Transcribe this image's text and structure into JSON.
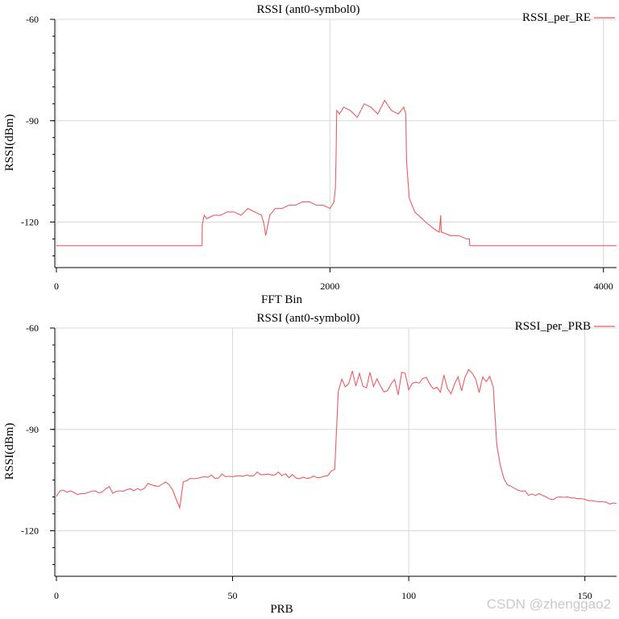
{
  "chart_data": [
    {
      "type": "line",
      "title": "RSSI (ant0-symbol0)",
      "xlabel": "FFT Bin",
      "ylabel": "RSSI(dBm)",
      "xlim": [
        0,
        4096
      ],
      "ylim": [
        -133,
        -60
      ],
      "xticks": [
        0,
        2000,
        4000
      ],
      "yticks": [
        -60,
        -90,
        -120
      ],
      "grid": true,
      "legend": "top-right",
      "series": [
        {
          "name": "RSSI_per_RE",
          "color": "#ee5a62",
          "x": [
            0,
            1065,
            1066,
            1080,
            1100,
            1150,
            1200,
            1250,
            1300,
            1350,
            1400,
            1450,
            1500,
            1520,
            1530,
            1545,
            1560,
            1600,
            1650,
            1700,
            1750,
            1800,
            1850,
            1900,
            1950,
            2000,
            2030,
            2040,
            2045,
            2050,
            2070,
            2100,
            2150,
            2200,
            2250,
            2300,
            2350,
            2400,
            2450,
            2500,
            2540,
            2555,
            2560,
            2580,
            2620,
            2700,
            2760,
            2800,
            2810,
            2815,
            2820,
            2880,
            2940,
            3000,
            3020,
            3022,
            4096
          ],
          "y": [
            -127,
            -127,
            -121,
            -118,
            -119,
            -118,
            -118,
            -117,
            -117,
            -118,
            -116,
            -117,
            -118,
            -121,
            -124,
            -121,
            -118,
            -116,
            -116,
            -115,
            -115,
            -114,
            -114,
            -115,
            -115,
            -116,
            -114,
            -110,
            -100,
            -87,
            -88,
            -86,
            -87,
            -89,
            -85,
            -86,
            -88,
            -84,
            -87,
            -88,
            -86,
            -88,
            -102,
            -113,
            -117,
            -120,
            -122,
            -123,
            -118,
            -123,
            -123,
            -124,
            -124,
            -125,
            -125,
            -127,
            -127
          ]
        }
      ]
    },
    {
      "type": "line",
      "title": "RSSI (ant0-symbol0)",
      "xlabel": "PRB",
      "ylabel": "RSSI(dBm)",
      "xlim": [
        0,
        159
      ],
      "ylim": [
        -133,
        -60
      ],
      "xticks": [
        0,
        50,
        100,
        150
      ],
      "yticks": [
        -60,
        -90,
        -120
      ],
      "grid": true,
      "legend": "top-right",
      "series": [
        {
          "name": "RSSI_per_PRB",
          "color": "#ee5a62",
          "x": [
            0,
            1,
            2,
            3,
            4,
            5,
            6,
            7,
            8,
            9,
            10,
            11,
            12,
            13,
            14,
            15,
            16,
            17,
            18,
            19,
            20,
            21,
            22,
            23,
            24,
            25,
            26,
            27,
            28,
            29,
            30,
            31,
            32,
            33,
            34,
            35,
            36,
            37,
            38,
            39,
            40,
            41,
            42,
            43,
            44,
            45,
            46,
            47,
            48,
            49,
            50,
            51,
            52,
            53,
            54,
            55,
            56,
            57,
            58,
            59,
            60,
            61,
            62,
            63,
            64,
            65,
            66,
            67,
            68,
            69,
            70,
            71,
            72,
            73,
            74,
            75,
            76,
            77,
            78,
            79,
            80,
            81,
            82,
            83,
            84,
            85,
            86,
            87,
            88,
            89,
            90,
            91,
            92,
            93,
            94,
            95,
            96,
            97,
            98,
            99,
            100,
            101,
            102,
            103,
            104,
            105,
            106,
            107,
            108,
            109,
            110,
            111,
            112,
            113,
            114,
            115,
            116,
            117,
            118,
            119,
            120,
            121,
            122,
            123,
            124,
            125,
            126,
            127,
            128,
            129,
            130,
            131,
            132,
            133,
            134,
            135,
            136,
            137,
            138,
            139,
            140,
            141,
            142,
            143,
            144,
            145,
            146,
            147,
            148,
            149,
            150,
            151,
            152,
            153,
            154,
            155,
            156,
            157,
            158,
            159
          ],
          "y": [
            -109.8,
            -108.2,
            -108.0,
            -108.6,
            -108.2,
            -108.7,
            -109.3,
            -109.0,
            -109.0,
            -108.7,
            -108.3,
            -108.2,
            -108.8,
            -108.5,
            -107.6,
            -106.9,
            -108.9,
            -108.3,
            -108.2,
            -108.3,
            -107.8,
            -107.6,
            -108.2,
            -107.5,
            -108.0,
            -107.4,
            -106.0,
            -106.4,
            -106.7,
            -106.9,
            -106.2,
            -105.6,
            -106.4,
            -107.9,
            -110.7,
            -113.2,
            -105.5,
            -105.2,
            -104.5,
            -104.6,
            -104.5,
            -104.2,
            -104.0,
            -104.2,
            -103.5,
            -104.5,
            -104.4,
            -103.2,
            -104.0,
            -103.9,
            -104.0,
            -103.8,
            -103.7,
            -103.9,
            -103.5,
            -103.8,
            -103.7,
            -102.6,
            -103.4,
            -103.4,
            -103.2,
            -103.5,
            -103.5,
            -102.6,
            -103.7,
            -103.1,
            -104.3,
            -103.4,
            -104.4,
            -104.6,
            -104.1,
            -104.5,
            -104.4,
            -103.8,
            -104.3,
            -104.2,
            -103.9,
            -103.7,
            -102.4,
            -101.8,
            -78.8,
            -75.1,
            -77.4,
            -76.4,
            -72.7,
            -77.2,
            -73.4,
            -77.2,
            -77.7,
            -73.1,
            -77.3,
            -75.0,
            -77.2,
            -78.9,
            -78.5,
            -76.5,
            -75.2,
            -79.8,
            -73.1,
            -73.4,
            -78.3,
            -76.4,
            -76.0,
            -76.3,
            -74.9,
            -74.6,
            -76.6,
            -78.0,
            -77.5,
            -79.0,
            -73.9,
            -77.9,
            -79.5,
            -76.6,
            -74.4,
            -78.6,
            -74.5,
            -72.3,
            -73.3,
            -75.1,
            -79.1,
            -74.5,
            -75.9,
            -74.3,
            -77.5,
            -94.7,
            -100.7,
            -104.5,
            -106.4,
            -106.8,
            -107.4,
            -108.0,
            -108.3,
            -108.2,
            -109.5,
            -109.1,
            -109.6,
            -109.0,
            -109.5,
            -110.0,
            -110.6,
            -110.8,
            -110.1,
            -110.0,
            -110.1,
            -110.0,
            -110.3,
            -110.3,
            -110.5,
            -110.5,
            -110.7,
            -111.1,
            -111.1,
            -111.3,
            -111.4,
            -111.4,
            -111.5,
            -112.1,
            -111.8,
            -111.9
          ]
        }
      ]
    }
  ],
  "watermark": "CSDN @zhenggao2"
}
